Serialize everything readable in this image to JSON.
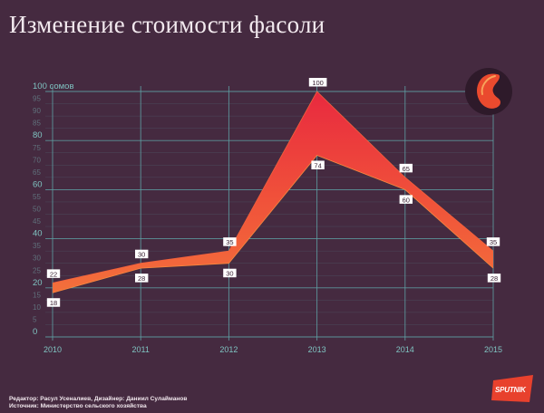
{
  "title": "Изменение стоимости фасоли",
  "credits": {
    "editor_line": "Редактор: Расул Усеналиев, Дизайнер: Даниил Сулайманов",
    "source_line": "Источник: Министерство сельского хозяйства"
  },
  "brand": {
    "logo_text": "SPUTNIK",
    "accent_color": "#e8412d"
  },
  "chart_data": {
    "type": "area",
    "title": "Изменение стоимости фасоли",
    "categories": [
      "2010",
      "2011",
      "2012",
      "2013",
      "2014",
      "2015"
    ],
    "series": [
      {
        "values": [
          22,
          30,
          35,
          100,
          65,
          35
        ]
      },
      {
        "values": [
          18,
          28,
          30,
          74,
          60,
          28
        ]
      }
    ],
    "ylim": [
      0,
      100
    ],
    "y_ticks": [
      0,
      5,
      10,
      15,
      20,
      25,
      30,
      35,
      40,
      45,
      50,
      55,
      60,
      65,
      70,
      75,
      80,
      85,
      90,
      95,
      100
    ],
    "y_tick_labels": [
      "0",
      "5",
      "10",
      "15",
      "20",
      "25",
      "30",
      "35",
      "40",
      "45",
      "50",
      "55",
      "60",
      "65",
      "70",
      "75",
      "80",
      "85",
      "90",
      "95",
      "100 сомов"
    ],
    "grid": true,
    "colors": {
      "bottom": "#f57f3c",
      "top": "#e8273f",
      "grid": "#5e9fa3",
      "axis_text": "#7fc3c1"
    }
  }
}
